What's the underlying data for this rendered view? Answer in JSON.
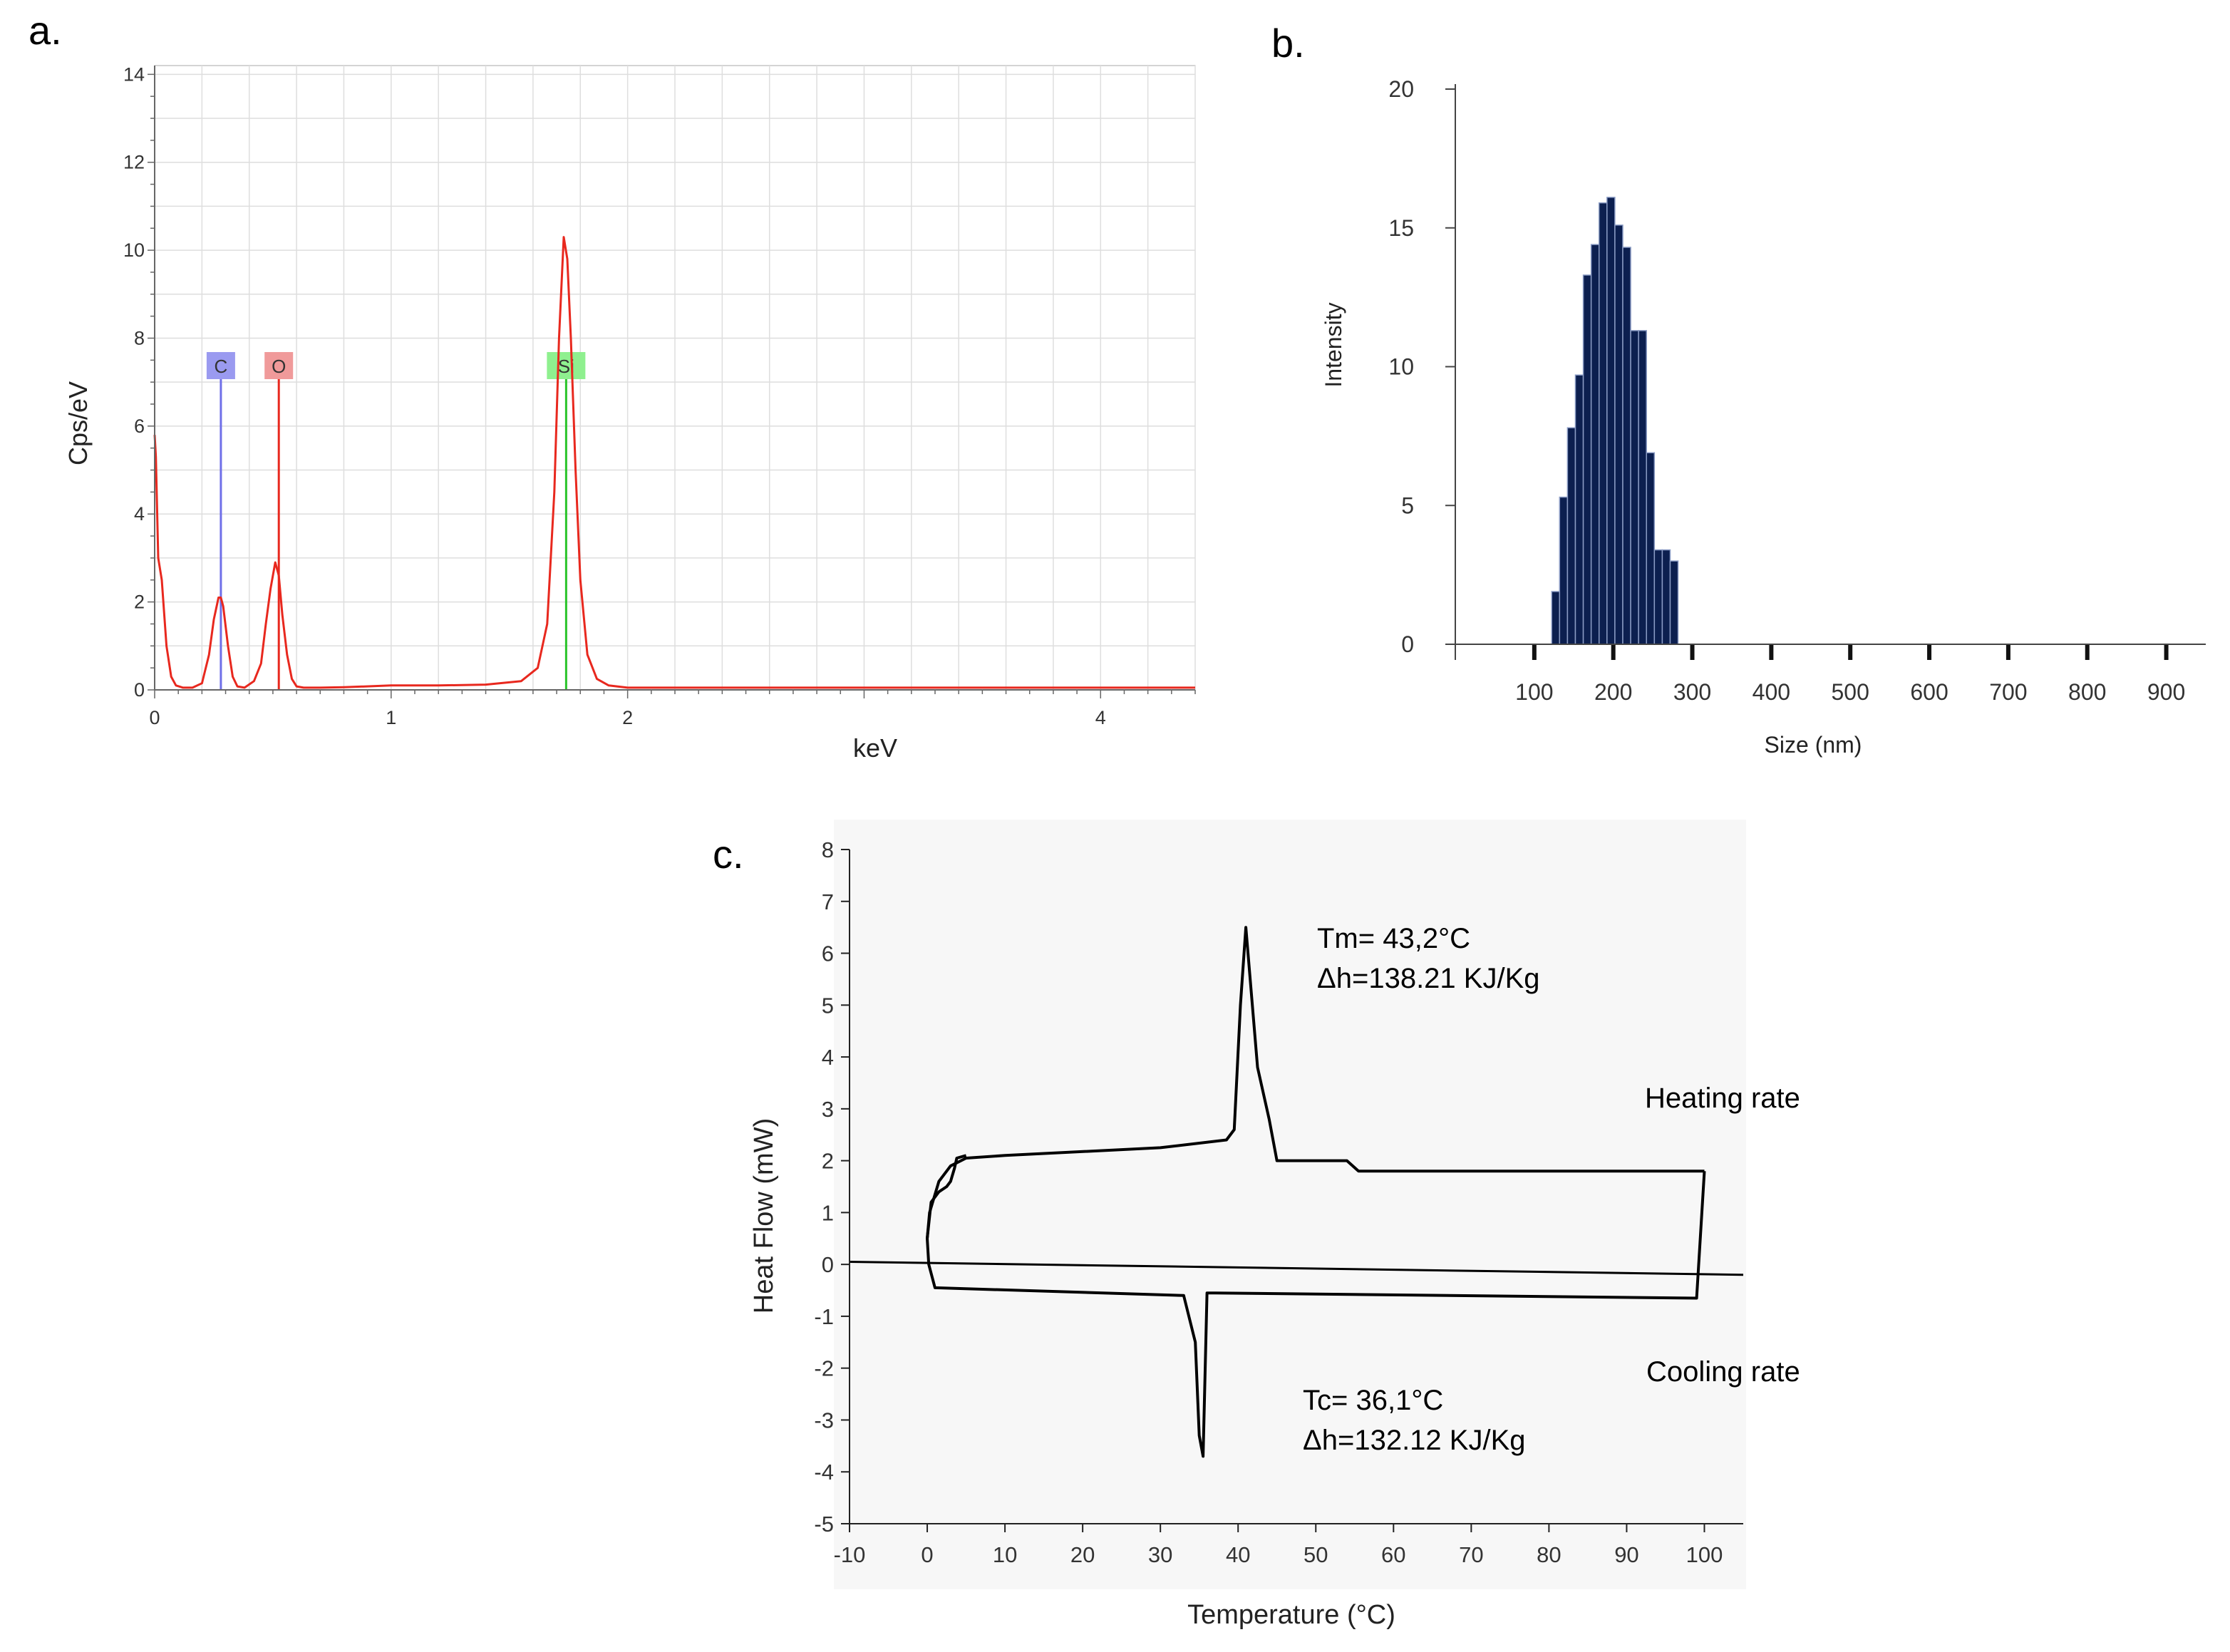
{
  "figure": {
    "panels": [
      "a.",
      "b.",
      "c."
    ]
  },
  "chart_data": [
    {
      "id": "a",
      "type": "line",
      "title": "",
      "xlabel": "keV",
      "ylabel": "Cps/eV",
      "xlim": [
        0,
        4.4
      ],
      "ylim": [
        0,
        14.2
      ],
      "x_ticks": [
        0,
        1,
        2,
        4
      ],
      "x_tick_labels": [
        "0",
        "1",
        "2",
        "4"
      ],
      "y_ticks": [
        0,
        2,
        4,
        6,
        8,
        10,
        12,
        14
      ],
      "y_tick_labels": [
        "0",
        "2",
        "4",
        "6",
        "8",
        "10",
        "12",
        "14"
      ],
      "grid": true,
      "series": [
        {
          "name": "spectrum",
          "color": "#e8281e",
          "x": [
            0,
            0.005,
            0.015,
            0.03,
            0.05,
            0.07,
            0.09,
            0.12,
            0.16,
            0.2,
            0.23,
            0.25,
            0.27,
            0.28,
            0.29,
            0.31,
            0.33,
            0.35,
            0.38,
            0.42,
            0.45,
            0.47,
            0.49,
            0.51,
            0.525,
            0.54,
            0.56,
            0.58,
            0.6,
            0.63,
            0.7,
            0.8,
            1.0,
            1.2,
            1.4,
            1.55,
            1.62,
            1.66,
            1.69,
            1.71,
            1.73,
            1.745,
            1.76,
            1.78,
            1.8,
            1.83,
            1.87,
            1.92,
            2.0,
            2.5,
            3.0,
            3.5,
            4.0,
            4.4
          ],
          "y": [
            5.8,
            5.3,
            3.0,
            2.5,
            1.0,
            0.3,
            0.1,
            0.05,
            0.05,
            0.15,
            0.8,
            1.6,
            2.1,
            2.1,
            1.9,
            1.0,
            0.3,
            0.08,
            0.05,
            0.2,
            0.6,
            1.5,
            2.3,
            2.9,
            2.6,
            1.7,
            0.8,
            0.25,
            0.08,
            0.05,
            0.05,
            0.06,
            0.1,
            0.1,
            0.12,
            0.2,
            0.5,
            1.5,
            4.5,
            8.0,
            10.3,
            9.8,
            8.0,
            5.0,
            2.5,
            0.8,
            0.25,
            0.1,
            0.05,
            0.05,
            0.05,
            0.05,
            0.05,
            0.05
          ]
        }
      ],
      "element_markers": [
        {
          "label": "C",
          "x": 0.28,
          "color": "#6f6fe8",
          "bg": "#9a9af0"
        },
        {
          "label": "O",
          "x": 0.525,
          "color": "#e8281e",
          "bg": "#f09a9a"
        },
        {
          "label": "Si",
          "x": 1.74,
          "color": "#2ac42a",
          "bg": "#8ff08f"
        }
      ]
    },
    {
      "id": "b",
      "type": "bar",
      "title": "",
      "xlabel": "Size (nm)",
      "ylabel": "Intensity",
      "xlim": [
        0,
        950
      ],
      "ylim": [
        0,
        20
      ],
      "x_ticks": [
        100,
        200,
        300,
        400,
        500,
        600,
        700,
        800,
        900
      ],
      "x_tick_labels": [
        "100",
        "200",
        "300",
        "400",
        "500",
        "600",
        "700",
        "800",
        "900"
      ],
      "y_ticks": [
        0,
        5,
        10,
        15,
        20
      ],
      "y_tick_labels": [
        "0",
        "5",
        "10",
        "15",
        "20"
      ],
      "grid": false,
      "bar_color": "#0c1f4f",
      "bins": [
        {
          "x0": 122,
          "x1": 132,
          "value": 1.9
        },
        {
          "x0": 132,
          "x1": 142,
          "value": 5.3
        },
        {
          "x0": 142,
          "x1": 152,
          "value": 7.8
        },
        {
          "x0": 152,
          "x1": 162,
          "value": 9.7
        },
        {
          "x0": 162,
          "x1": 172,
          "value": 13.3
        },
        {
          "x0": 172,
          "x1": 182,
          "value": 14.4
        },
        {
          "x0": 182,
          "x1": 192,
          "value": 15.9
        },
        {
          "x0": 192,
          "x1": 202,
          "value": 16.1
        },
        {
          "x0": 202,
          "x1": 212,
          "value": 15.1
        },
        {
          "x0": 212,
          "x1": 222,
          "value": 14.3
        },
        {
          "x0": 222,
          "x1": 232,
          "value": 11.3
        },
        {
          "x0": 232,
          "x1": 242,
          "value": 11.3
        },
        {
          "x0": 242,
          "x1": 252,
          "value": 6.9
        },
        {
          "x0": 252,
          "x1": 262,
          "value": 3.4
        },
        {
          "x0": 262,
          "x1": 272,
          "value": 3.4
        },
        {
          "x0": 272,
          "x1": 282,
          "value": 3.0
        }
      ]
    },
    {
      "id": "c",
      "type": "line",
      "title": "",
      "xlabel": "Temperature (°C)",
      "ylabel": "Heat Flow (mW)",
      "xlim": [
        -10,
        105
      ],
      "ylim": [
        -5,
        8
      ],
      "x_ticks": [
        -10,
        0,
        10,
        20,
        30,
        40,
        50,
        60,
        70,
        80,
        90,
        100
      ],
      "x_tick_labels": [
        "-10",
        "0",
        "10",
        "20",
        "30",
        "40",
        "50",
        "60",
        "70",
        "80",
        "90",
        "100"
      ],
      "y_ticks": [
        -5,
        -4,
        -3,
        -2,
        -1,
        0,
        1,
        2,
        3,
        4,
        5,
        6,
        7,
        8
      ],
      "y_tick_labels": [
        "-5",
        "-4",
        "-3",
        "-2",
        "-1",
        "0",
        "1",
        "2",
        "3",
        "4",
        "5",
        "6",
        "7",
        "8"
      ],
      "grid": false,
      "series": [
        {
          "name": "Heating rate",
          "color": "#000000",
          "x": [
            0,
            0.3,
            1.5,
            3,
            5,
            10,
            30,
            38.5,
            39.5,
            40.3,
            41,
            42.5,
            44,
            45,
            54,
            55.5,
            100
          ],
          "y": [
            0.5,
            1.0,
            1.6,
            1.9,
            2.05,
            2.1,
            2.25,
            2.4,
            2.6,
            5.0,
            6.5,
            3.8,
            2.8,
            2.0,
            2.0,
            1.8,
            1.8
          ]
        },
        {
          "name": "Cooling rate",
          "color": "#000000",
          "x": [
            100,
            99,
            37,
            36,
            35.5,
            35,
            34.5,
            33,
            1,
            0.2,
            0,
            0.5,
            1.5,
            2.5,
            3,
            3.5,
            3.8,
            5
          ],
          "y": [
            1.8,
            -0.65,
            -0.55,
            -0.55,
            -3.7,
            -3.3,
            -1.5,
            -0.6,
            -0.45,
            0.0,
            0.5,
            1.2,
            1.4,
            1.5,
            1.6,
            1.85,
            2.05,
            2.1
          ]
        },
        {
          "name": "baseline",
          "color": "#000000",
          "x": [
            -10,
            105
          ],
          "y": [
            0.05,
            -0.2
          ]
        }
      ],
      "annotations": [
        "Tm= 43,2°C",
        "Δh=138.21 KJ/Kg",
        "Heating rate",
        "Cooling rate",
        "Tc= 36,1°C",
        "Δh=132.12 KJ/Kg"
      ]
    }
  ]
}
